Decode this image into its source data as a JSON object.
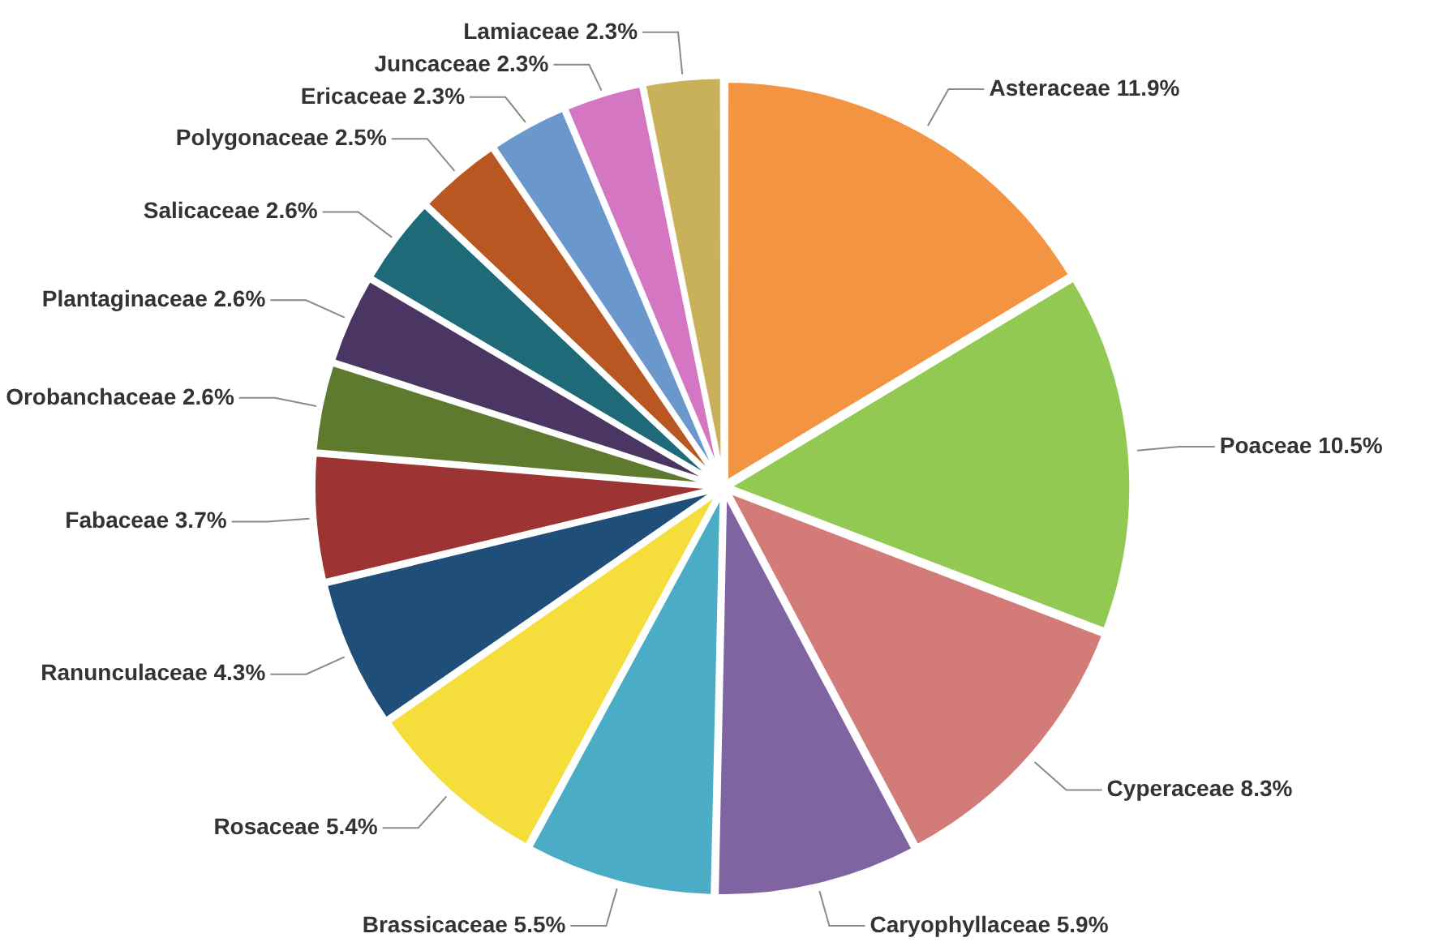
{
  "chart_data": {
    "type": "pie",
    "categories": [
      "Asteraceae",
      "Poaceae",
      "Cyperaceae",
      "Caryophyllaceae",
      "Brassicaceae",
      "Rosaceae",
      "Ranunculaceae",
      "Fabaceae",
      "Orobanchaceae",
      "Plantaginaceae",
      "Salicaceae",
      "Polygonaceae",
      "Ericaceae",
      "Juncaceae",
      "Lamiaceae"
    ],
    "values": [
      11.9,
      10.5,
      8.3,
      5.9,
      5.5,
      5.4,
      4.3,
      3.7,
      2.6,
      2.6,
      2.6,
      2.5,
      2.3,
      2.3,
      2.3
    ],
    "value_labels": [
      "11.9%",
      "10.5%",
      "8.3%",
      "5.9%",
      "5.5%",
      "5.4%",
      "4.3%",
      "3.7%",
      "2.6%",
      "2.6%",
      "2.6%",
      "2.5%",
      "2.3%",
      "2.3%",
      "2.3%"
    ],
    "colors": [
      "#f39442",
      "#92c952",
      "#d27b78",
      "#8064a2",
      "#4bacc6",
      "#f5de3c",
      "#1f4e79",
      "#9b3432",
      "#5e7a2e",
      "#4a3563",
      "#1e6a78",
      "#b85722",
      "#6b98cc",
      "#d576c2",
      "#c9b15c"
    ],
    "legend": false
  }
}
